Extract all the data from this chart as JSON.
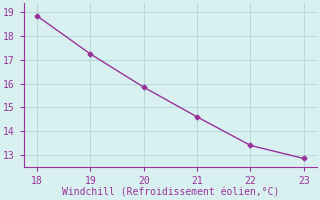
{
  "x": [
    18,
    19,
    20,
    21,
    22,
    23
  ],
  "y": [
    18.85,
    17.25,
    15.85,
    14.6,
    13.4,
    12.85
  ],
  "line_color": "#993399",
  "marker": "D",
  "markersize": 2.5,
  "linewidth": 1.0,
  "xlabel": "Windchill (Refroidissement éolien,°C)",
  "xlabel_fontsize": 7,
  "xticks": [
    18,
    19,
    20,
    21,
    22,
    23
  ],
  "yticks": [
    13,
    14,
    15,
    16,
    17,
    18,
    19
  ],
  "xlim": [
    17.75,
    23.25
  ],
  "ylim": [
    12.5,
    19.4
  ],
  "background_color": "#d8f0f0",
  "grid_color": "#b0d8d8",
  "tick_color": "#993399",
  "tick_fontsize": 7,
  "spine_color": "#993399"
}
